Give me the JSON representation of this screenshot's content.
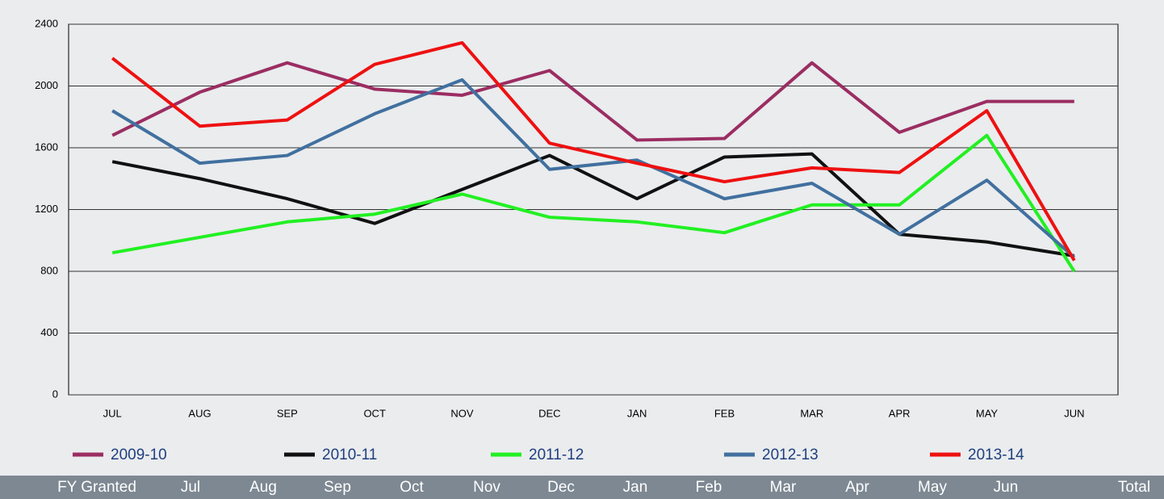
{
  "chart_data": {
    "type": "line",
    "categories": [
      "JUL",
      "AUG",
      "SEP",
      "OCT",
      "NOV",
      "DEC",
      "JAN",
      "FEB",
      "MAR",
      "APR",
      "MAY",
      "JUN"
    ],
    "series": [
      {
        "name": "2009-10",
        "color": "#9b2d62",
        "values": [
          1680,
          1960,
          2150,
          1980,
          1940,
          2100,
          1650,
          1660,
          2150,
          1700,
          1900,
          1900
        ]
      },
      {
        "name": "2010-11",
        "color": "#111111",
        "values": [
          1510,
          1400,
          1270,
          1110,
          1330,
          1550,
          1270,
          1540,
          1560,
          1040,
          990,
          900
        ]
      },
      {
        "name": "2011-12",
        "color": "#22f022",
        "values": [
          920,
          1020,
          1120,
          1170,
          1300,
          1150,
          1120,
          1050,
          1230,
          1230,
          1680,
          800
        ]
      },
      {
        "name": "2012-13",
        "color": "#41709f",
        "values": [
          1840,
          1500,
          1550,
          1820,
          2040,
          1460,
          1520,
          1270,
          1370,
          1040,
          1390,
          890
        ]
      },
      {
        "name": "2013-14",
        "color": "#ee1111",
        "values": [
          2180,
          1740,
          1780,
          2140,
          2280,
          1630,
          1500,
          1380,
          1470,
          1440,
          1840,
          870
        ]
      }
    ],
    "ylim": [
      0,
      2400
    ],
    "yticks": [
      0,
      400,
      800,
      1200,
      1600,
      2000,
      2400
    ],
    "grid": true
  },
  "table": {
    "header": [
      "FY Granted",
      "Jul",
      "Aug",
      "Sep",
      "Oct",
      "Nov",
      "Dec",
      "Jan",
      "Feb",
      "Mar",
      "Apr",
      "May",
      "Jun",
      "Total"
    ]
  }
}
